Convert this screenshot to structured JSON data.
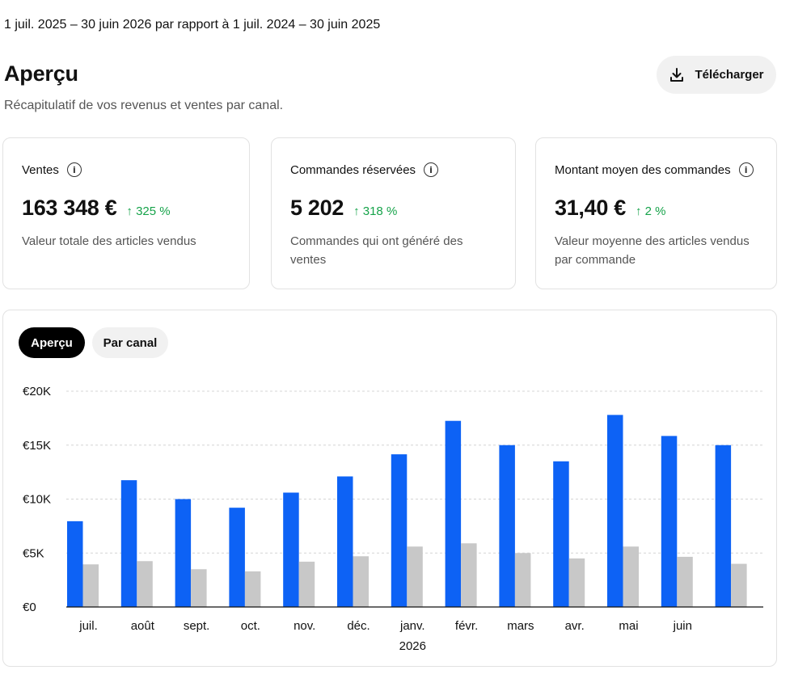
{
  "header": {
    "date_range": "1 juil. 2025 – 30 juin 2026 par rapport à 1 juil. 2024 – 30 juin 2025",
    "title": "Aperçu",
    "subtitle": "Récapitulatif de vos revenus et ventes par canal.",
    "download_label": "Télécharger"
  },
  "cards": [
    {
      "label": "Ventes",
      "value": "163 348 €",
      "delta": "↑ 325 %",
      "description": "Valeur totale des articles vendus"
    },
    {
      "label": "Commandes réservées",
      "value": "5 202",
      "delta": "↑ 318 %",
      "description": "Commandes qui ont généré des ventes"
    },
    {
      "label": "Montant moyen des commandes",
      "value": "31,40 €",
      "delta": "↑ 2 %",
      "description": "Valeur moyenne des articles vendus par commande"
    }
  ],
  "tabs": [
    {
      "label": "Aperçu",
      "active": true
    },
    {
      "label": "Par canal",
      "active": false
    }
  ],
  "colors": {
    "current": "#0d62f5",
    "previous": "#c8c8c8",
    "positive": "#16a34a"
  },
  "chart_data": {
    "type": "bar",
    "categories": [
      "juil.",
      "août",
      "sept.",
      "oct.",
      "nov.",
      "déc.",
      "janv.",
      "févr.",
      "mars",
      "avr.",
      "mai",
      "juin",
      ""
    ],
    "year_label": "2026",
    "series": [
      {
        "values": [
          7950,
          11750,
          10000,
          9200,
          10600,
          12100,
          14150,
          17250,
          15000,
          13500,
          17800,
          15850,
          15000
        ]
      },
      {
        "values": [
          3950,
          4250,
          3500,
          3300,
          4200,
          4700,
          5600,
          5900,
          5000,
          4500,
          5600,
          4650,
          4000
        ]
      }
    ],
    "y_ticks": [
      "€0",
      "€5K",
      "€10K",
      "€15K",
      "€20K"
    ],
    "y_tick_values": [
      0,
      5000,
      10000,
      15000,
      20000
    ],
    "ylim": [
      0,
      20000
    ],
    "grid": true,
    "legend": "none"
  }
}
